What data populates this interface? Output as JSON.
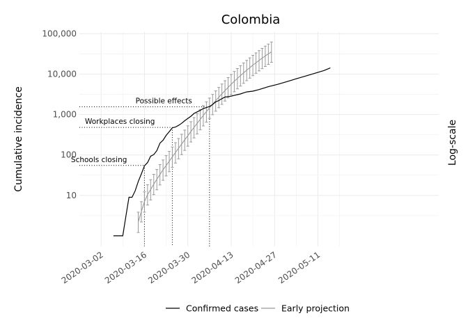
{
  "chart_data": {
    "type": "line",
    "title": "Colombia",
    "xlabel": "",
    "ylabel": "Cumulative incidence",
    "right_label": "Log-scale",
    "y_scale": "log10",
    "ylim": [
      0.55,
      110000
    ],
    "xlim": [
      "2020-02-24",
      "2020-06-19"
    ],
    "grid": true,
    "x_tick_labels": [
      "2020-03-02",
      "2020-03-16",
      "2020-03-30",
      "2020-04-13",
      "2020-04-27",
      "2020-05-11"
    ],
    "y_ticks": [
      10,
      100,
      1000,
      10000,
      100000
    ],
    "y_tick_labels": [
      "10",
      "100",
      "1,000",
      "10,000",
      "100,000"
    ],
    "legend": {
      "position": "bottom",
      "items": [
        {
          "label": "Confirmed cases",
          "color": "#000000"
        },
        {
          "label": "Early projection",
          "color": "#999999"
        }
      ]
    },
    "annotations": [
      {
        "label": "Schools closing",
        "date": "2020-03-16",
        "y": 55
      },
      {
        "label": "Workplaces closing",
        "date": "2020-03-25",
        "y": 480
      },
      {
        "label": "Possible effects",
        "date": "2020-04-06",
        "y": 1550
      }
    ],
    "series": [
      {
        "name": "Confirmed cases",
        "color": "#000000",
        "points": [
          [
            "2020-03-06",
            1
          ],
          [
            "2020-03-07",
            1
          ],
          [
            "2020-03-08",
            1
          ],
          [
            "2020-03-09",
            1
          ],
          [
            "2020-03-10",
            3
          ],
          [
            "2020-03-11",
            9
          ],
          [
            "2020-03-12",
            9
          ],
          [
            "2020-03-13",
            13
          ],
          [
            "2020-03-14",
            22
          ],
          [
            "2020-03-15",
            34
          ],
          [
            "2020-03-16",
            54
          ],
          [
            "2020-03-17",
            65
          ],
          [
            "2020-03-18",
            93
          ],
          [
            "2020-03-19",
            102
          ],
          [
            "2020-03-20",
            128
          ],
          [
            "2020-03-21",
            196
          ],
          [
            "2020-03-22",
            231
          ],
          [
            "2020-03-23",
            306
          ],
          [
            "2020-03-24",
            378
          ],
          [
            "2020-03-25",
            470
          ],
          [
            "2020-03-26",
            491
          ],
          [
            "2020-03-27",
            539
          ],
          [
            "2020-03-28",
            608
          ],
          [
            "2020-03-29",
            702
          ],
          [
            "2020-03-30",
            798
          ],
          [
            "2020-03-31",
            906
          ],
          [
            "2020-04-01",
            1065
          ],
          [
            "2020-04-02",
            1161
          ],
          [
            "2020-04-03",
            1267
          ],
          [
            "2020-04-04",
            1406
          ],
          [
            "2020-04-05",
            1485
          ],
          [
            "2020-04-06",
            1579
          ],
          [
            "2020-04-07",
            1780
          ],
          [
            "2020-04-08",
            2054
          ],
          [
            "2020-04-09",
            2223
          ],
          [
            "2020-04-10",
            2473
          ],
          [
            "2020-04-11",
            2709
          ],
          [
            "2020-04-12",
            2776
          ],
          [
            "2020-04-13",
            2852
          ],
          [
            "2020-04-14",
            2979
          ],
          [
            "2020-04-15",
            3105
          ],
          [
            "2020-04-16",
            3233
          ],
          [
            "2020-04-17",
            3439
          ],
          [
            "2020-04-18",
            3621
          ],
          [
            "2020-04-20",
            3792
          ],
          [
            "2020-04-22",
            4149
          ],
          [
            "2020-04-25",
            4881
          ],
          [
            "2020-04-28",
            5597
          ],
          [
            "2020-05-01",
            6507
          ],
          [
            "2020-05-04",
            7668
          ],
          [
            "2020-05-07",
            8959
          ],
          [
            "2020-05-10",
            10495
          ],
          [
            "2020-05-13",
            12272
          ],
          [
            "2020-05-15",
            14216
          ]
        ]
      },
      {
        "name": "Early projection",
        "color": "#999999",
        "points": [
          [
            "2020-03-14",
            2.2
          ],
          [
            "2020-03-15",
            4
          ],
          [
            "2020-03-16",
            7
          ],
          [
            "2020-03-17",
            10.5
          ],
          [
            "2020-03-18",
            14
          ],
          [
            "2020-03-19",
            19
          ],
          [
            "2020-03-20",
            25
          ],
          [
            "2020-03-21",
            33
          ],
          [
            "2020-03-22",
            43
          ],
          [
            "2020-03-23",
            55
          ],
          [
            "2020-03-24",
            70
          ],
          [
            "2020-03-25",
            90
          ],
          [
            "2020-03-26",
            115
          ],
          [
            "2020-03-27",
            146
          ],
          [
            "2020-03-28",
            186
          ],
          [
            "2020-03-29",
            236
          ],
          [
            "2020-03-30",
            300
          ],
          [
            "2020-03-31",
            380
          ],
          [
            "2020-04-01",
            480
          ],
          [
            "2020-04-02",
            605
          ],
          [
            "2020-04-03",
            760
          ],
          [
            "2020-04-04",
            950
          ],
          [
            "2020-04-05",
            1180
          ],
          [
            "2020-04-06",
            1460
          ],
          [
            "2020-04-07",
            1800
          ],
          [
            "2020-04-08",
            2200
          ],
          [
            "2020-04-09",
            2680
          ],
          [
            "2020-04-10",
            3250
          ],
          [
            "2020-04-11",
            3920
          ],
          [
            "2020-04-12",
            4700
          ],
          [
            "2020-04-13",
            5600
          ],
          [
            "2020-04-14",
            6650
          ],
          [
            "2020-04-15",
            7850
          ],
          [
            "2020-04-16",
            9200
          ],
          [
            "2020-04-17",
            10750
          ],
          [
            "2020-04-18",
            12500
          ],
          [
            "2020-04-19",
            14450
          ],
          [
            "2020-04-20",
            16650
          ],
          [
            "2020-04-21",
            19100
          ],
          [
            "2020-04-22",
            21800
          ],
          [
            "2020-04-23",
            24800
          ],
          [
            "2020-04-24",
            28100
          ],
          [
            "2020-04-25",
            31700
          ],
          [
            "2020-04-26",
            35600
          ]
        ],
        "error_bars": {
          "lower_factor": 0.55,
          "upper_factor": 1.75
        }
      }
    ]
  }
}
